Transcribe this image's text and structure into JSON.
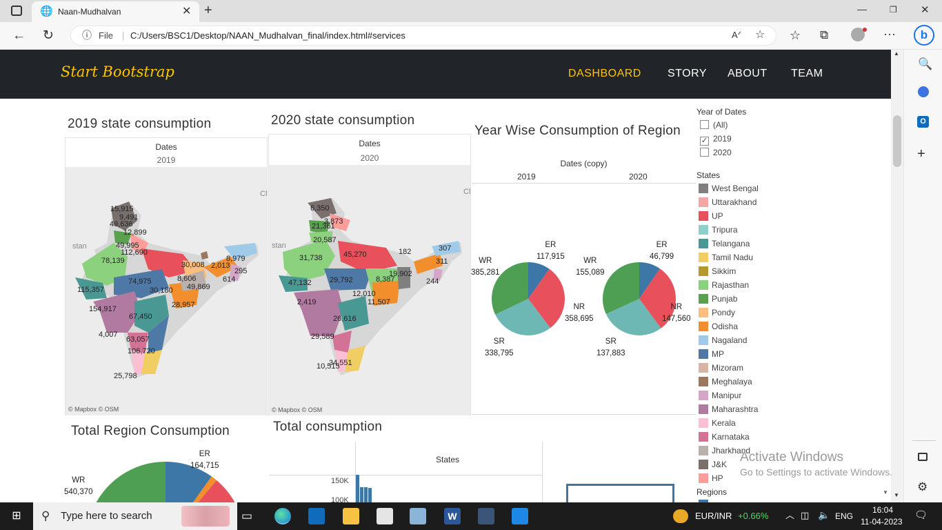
{
  "browser": {
    "tab_title": "Naan-Mudhalvan",
    "file_label": "File",
    "url": "C:/Users/BSC1/Desktop/NAAN_Mudhalvan_final/index.html#services"
  },
  "site": {
    "brand": "Start Bootstrap",
    "nav": [
      "DASHBOARD",
      "STORY",
      "ABOUT",
      "TEAM"
    ],
    "colors": {
      "navbar": "#212529",
      "accent": "#fec503"
    }
  },
  "map2019": {
    "title": "2019 state consumption",
    "header": "Dates",
    "year": "2019",
    "attribution": "© Mapbox  © OSM",
    "labels": [
      "15,915",
      "9,491",
      "49,636",
      "12,899",
      "49,995",
      "112,690",
      "78,139",
      "30,008",
      "2,013",
      "8,979",
      "295",
      "614",
      "8,606",
      "49,869",
      "74,975",
      "115,357",
      "30,180",
      "28,957",
      "154,917",
      "67,450",
      "4,007",
      "63,057",
      "106,720",
      "25,798",
      "Ch",
      "stan"
    ]
  },
  "map2020": {
    "title": "2020 state consumption",
    "header": "Dates",
    "year": "2020",
    "attribution": "© Mapbox  © OSM",
    "labels": [
      "6,350",
      "3,873",
      "21,361",
      "20,587",
      "45,270",
      "31,738",
      "182",
      "307",
      "311",
      "19,902",
      "244",
      "47,132",
      "29,792",
      "8,387",
      "12,010",
      "2,419",
      "11,507",
      "26,616",
      "29,589",
      "10,515",
      "34,551",
      "Ch",
      "stan"
    ]
  },
  "yearwise": {
    "title": "Year Wise Consumption of Region",
    "header": "Dates (copy)",
    "years": [
      "2019",
      "2020"
    ],
    "pie2019": {
      "ER": "117,915",
      "WR": "385,281",
      "NR": "358,695",
      "SR": "338,795"
    },
    "pie2020": {
      "ER": "46,799",
      "WR": "155,089",
      "NR": "147,560",
      "SR": "137,883"
    }
  },
  "chart_data": [
    {
      "type": "pie",
      "title": "2019",
      "categories": [
        "ER",
        "NR",
        "SR",
        "WR"
      ],
      "values": [
        117915,
        358695,
        338795,
        385281
      ],
      "colors": [
        "#3c77a7",
        "#e8505b",
        "#6db8b5",
        "#4e9e54"
      ]
    },
    {
      "type": "pie",
      "title": "2020",
      "categories": [
        "ER",
        "NR",
        "SR",
        "WR"
      ],
      "values": [
        46799,
        147560,
        137883,
        155089
      ],
      "colors": [
        "#3c77a7",
        "#e8505b",
        "#6db8b5",
        "#4e9e54"
      ]
    },
    {
      "type": "pie",
      "title": "Total Region Consumption",
      "categories": [
        "ER",
        "WR"
      ],
      "values": [
        164715,
        540370
      ],
      "colors": [
        "#3c77a7",
        "#4e9e54"
      ]
    },
    {
      "type": "bar",
      "title": "Total consumption",
      "xlabel": "States",
      "yticks": [
        "150K",
        "100K"
      ],
      "values": [
        150000,
        100000,
        100000,
        95000
      ]
    }
  ],
  "total_region": {
    "title": "Total Region Consumption",
    "ER_label": "ER",
    "ER_value": "164,715",
    "WR_label": "WR",
    "WR_value": "540,370"
  },
  "total_consumption": {
    "title": "Total consumption",
    "header": "States",
    "ytick1": "150K",
    "ytick2": "100K"
  },
  "filters": {
    "year_title": "Year of Dates",
    "year_options": [
      {
        "label": "(All)",
        "checked": false
      },
      {
        "label": "2019",
        "checked": true
      },
      {
        "label": "2020",
        "checked": false
      }
    ],
    "states_title": "States",
    "states": [
      {
        "name": "West Bengal",
        "color": "#7f7f7f"
      },
      {
        "name": "Uttarakhand",
        "color": "#f4a6a6"
      },
      {
        "name": "UP",
        "color": "#e8505b"
      },
      {
        "name": "Tripura",
        "color": "#8ecfc9"
      },
      {
        "name": "Telangana",
        "color": "#499894"
      },
      {
        "name": "Tamil Nadu",
        "color": "#f1ce63"
      },
      {
        "name": "Sikkim",
        "color": "#b6992d"
      },
      {
        "name": "Rajasthan",
        "color": "#8cd17d"
      },
      {
        "name": "Punjab",
        "color": "#59a14f"
      },
      {
        "name": "Pondy",
        "color": "#ffbe7d"
      },
      {
        "name": "Odisha",
        "color": "#f28e2b"
      },
      {
        "name": "Nagaland",
        "color": "#a0cbe8"
      },
      {
        "name": "MP",
        "color": "#4e79a7"
      },
      {
        "name": "Mizoram",
        "color": "#d7b5a6"
      },
      {
        "name": "Meghalaya",
        "color": "#9d7660"
      },
      {
        "name": "Manipur",
        "color": "#d4a6c8"
      },
      {
        "name": "Maharashtra",
        "color": "#b07aa1"
      },
      {
        "name": "Kerala",
        "color": "#fabfd2"
      },
      {
        "name": "Karnataka",
        "color": "#d37295"
      },
      {
        "name": "Jharkhand",
        "color": "#bab0ac"
      },
      {
        "name": "J&K",
        "color": "#79706e"
      },
      {
        "name": "HP",
        "color": "#ff9d9a"
      }
    ],
    "regions_title": "Regions"
  },
  "watermark": {
    "line1": "Activate Windows",
    "line2": "Go to Settings to activate Windows."
  },
  "taskbar": {
    "search_placeholder": "Type here to search",
    "ticker_name": "EUR/INR",
    "ticker_change": "+0.66%",
    "lang": "ENG",
    "time": "16:04",
    "date": "11-04-2023"
  }
}
